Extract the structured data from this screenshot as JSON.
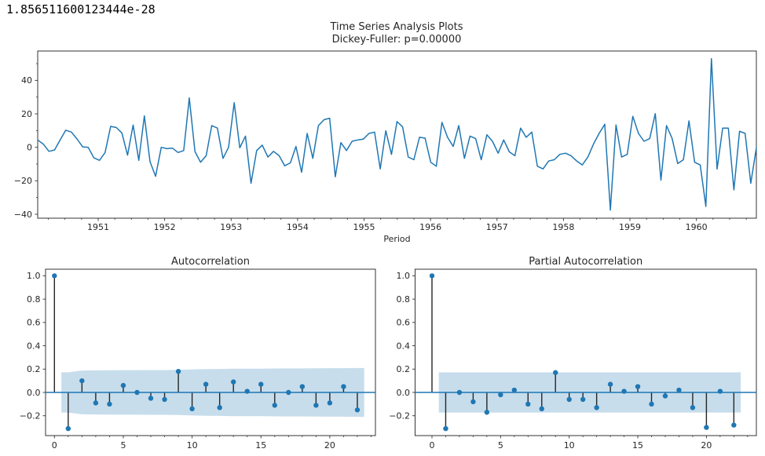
{
  "overlay_text": "1.856511600123444e-28",
  "figure": {
    "suptitle_line1": "Time Series Analysis Plots",
    "suptitle_line2": "Dickey-Fuller: p=0.00000"
  },
  "colors": {
    "line": "#1f77b4",
    "marker": "#1f77b4",
    "stem": "#262626",
    "band": "rgba(31,119,180,0.25)",
    "zero_line": "#1f77b4",
    "spine": "#333333",
    "text": "#262626"
  },
  "chart_data": [
    {
      "type": "line",
      "title": "",
      "xlabel": "Period",
      "x_start_year": 1950.1,
      "x_end_year": 1960.9,
      "xticks": [
        1951,
        1952,
        1953,
        1954,
        1955,
        1956,
        1957,
        1958,
        1959,
        1960
      ],
      "yticks": [
        -40,
        -20,
        0,
        20,
        40
      ],
      "ylim": [
        -42.3,
        57.5
      ],
      "values": [
        4.4,
        1.9,
        -2.4,
        -1.6,
        4.4,
        10.2,
        9.1,
        5.0,
        0.3,
        0.0,
        -6.3,
        -7.8,
        -3.1,
        12.5,
        11.8,
        8.6,
        -4.7,
        13.3,
        -7.8,
        18.8,
        -8.6,
        -17.3,
        0.0,
        -0.8,
        -0.5,
        -3.1,
        -1.9,
        29.5,
        -2.5,
        -8.9,
        -5.0,
        13.0,
        11.5,
        -6.6,
        0.0,
        26.7,
        -0.3,
        6.7,
        -21.5,
        -1.9,
        1.3,
        -5.8,
        -2.4,
        -5.0,
        -11.0,
        -9.3,
        0.5,
        -14.9,
        8.3,
        -6.6,
        13.0,
        16.5,
        17.4,
        -17.6,
        2.8,
        -1.9,
        3.6,
        4.4,
        4.9,
        8.3,
        9.1,
        -12.9,
        9.9,
        -4.2,
        15.4,
        12.2,
        -5.8,
        -7.4,
        6.0,
        5.5,
        -8.9,
        -11.3,
        14.9,
        6.0,
        0.5,
        13.0,
        -6.6,
        6.7,
        5.2,
        -7.4,
        7.5,
        3.6,
        -3.5,
        4.4,
        -2.7,
        -5.0,
        11.5,
        6.0,
        9.1,
        -11.3,
        -12.9,
        -8.2,
        -7.4,
        -4.2,
        -3.5,
        -5.0,
        -8.2,
        -10.5,
        -5.8,
        2.0,
        8.3,
        13.8,
        -37.5,
        13.3,
        -5.8,
        -4.2,
        18.5,
        8.3,
        3.6,
        5.2,
        20.1,
        -19.6,
        13.0,
        5.2,
        -9.7,
        -7.4,
        15.8,
        -8.9,
        -10.5,
        -35.3,
        53.0,
        -13.0,
        11.5,
        11.5,
        -25.4,
        9.6,
        8.3,
        -21.5,
        -0.3
      ]
    },
    {
      "type": "stem",
      "title": "Autocorrelation",
      "xticks": [
        0,
        5,
        10,
        15,
        20
      ],
      "yticks": [
        1.0,
        0.8,
        0.6,
        0.4,
        0.2,
        0.0,
        -0.2
      ],
      "ylim": [
        -0.36,
        1.05
      ],
      "lags": [
        0,
        1,
        2,
        3,
        4,
        5,
        6,
        7,
        8,
        9,
        10,
        11,
        12,
        13,
        14,
        15,
        16,
        17,
        18,
        19,
        20,
        21,
        22
      ],
      "values": [
        1.0,
        -0.31,
        0.1,
        -0.09,
        -0.1,
        0.06,
        0.0,
        -0.05,
        -0.06,
        0.18,
        -0.14,
        0.07,
        -0.13,
        0.09,
        0.01,
        0.07,
        -0.11,
        0.0,
        0.05,
        -0.11,
        -0.09,
        0.05,
        -0.15
      ],
      "conf_band": {
        "from": 0.5,
        "to": 22.5,
        "half_widths": [
          0.172,
          0.188,
          0.189,
          0.19,
          0.191,
          0.191,
          0.192,
          0.192,
          0.193,
          0.198,
          0.2,
          0.201,
          0.203,
          0.204,
          0.204,
          0.205,
          0.206,
          0.206,
          0.207,
          0.208,
          0.208,
          0.209
        ]
      }
    },
    {
      "type": "stem",
      "title": "Partial Autocorrelation",
      "xticks": [
        0,
        5,
        10,
        15,
        20
      ],
      "yticks": [
        1.0,
        0.8,
        0.6,
        0.4,
        0.2,
        0.0,
        -0.2
      ],
      "ylim": [
        -0.36,
        1.05
      ],
      "lags": [
        0,
        1,
        2,
        3,
        4,
        5,
        6,
        7,
        8,
        9,
        10,
        11,
        12,
        13,
        14,
        15,
        16,
        17,
        18,
        19,
        20,
        21,
        22
      ],
      "values": [
        1.0,
        -0.31,
        0.0,
        -0.08,
        -0.17,
        -0.02,
        0.02,
        -0.1,
        -0.14,
        0.17,
        -0.06,
        -0.06,
        -0.13,
        0.07,
        0.01,
        0.05,
        -0.1,
        -0.03,
        0.02,
        -0.13,
        -0.3,
        0.01,
        -0.28
      ],
      "conf_band": {
        "from": 0.5,
        "to": 22.5,
        "half_widths": 0.172
      }
    }
  ]
}
